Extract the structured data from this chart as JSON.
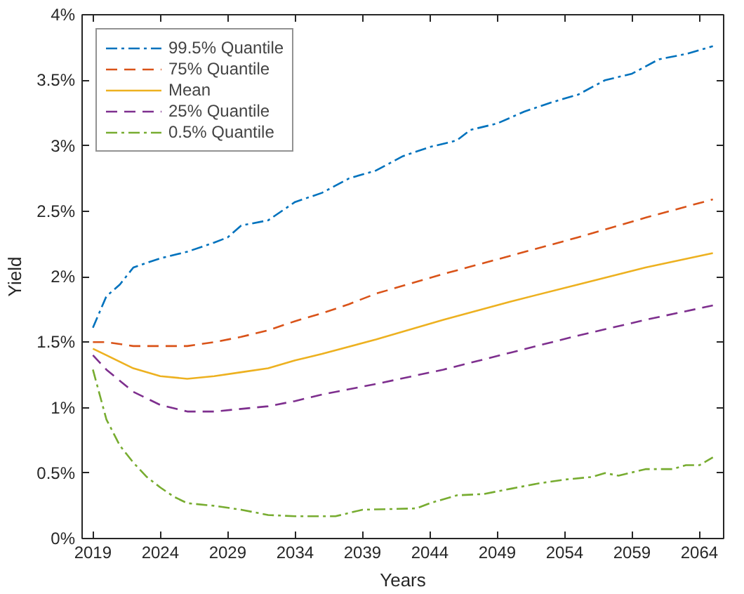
{
  "chart_data": {
    "type": "line",
    "xlabel": "Years",
    "ylabel": "Yield",
    "xlim": [
      2018.2,
      2065.8
    ],
    "xticks": [
      2019,
      2024,
      2029,
      2034,
      2039,
      2044,
      2049,
      2054,
      2059,
      2064
    ],
    "ylim": [
      0,
      4
    ],
    "yticks": [
      {
        "value": 0,
        "label": "0%"
      },
      {
        "value": 0.5,
        "label": "0.5%"
      },
      {
        "value": 1,
        "label": "1%"
      },
      {
        "value": 1.5,
        "label": "1.5%"
      },
      {
        "value": 2,
        "label": "2%"
      },
      {
        "value": 2.5,
        "label": "2.5%"
      },
      {
        "value": 3,
        "label": "3%"
      },
      {
        "value": 3.5,
        "label": "3.5%"
      },
      {
        "value": 4,
        "label": "4%"
      }
    ],
    "grid": false,
    "legend": "top left",
    "marker": "none",
    "series": [
      {
        "name": "99.5% Quantile",
        "color": "#0072bd",
        "line_style": "dashdot",
        "x": [
          2019,
          2020,
          2021,
          2022,
          2024,
          2026,
          2028,
          2029,
          2030,
          2032,
          2034,
          2036,
          2038,
          2040,
          2042,
          2044,
          2046,
          2047,
          2049,
          2051,
          2053,
          2055,
          2057,
          2059,
          2061,
          2063,
          2065
        ],
        "values": [
          1.61,
          1.85,
          1.94,
          2.07,
          2.14,
          2.19,
          2.26,
          2.3,
          2.39,
          2.43,
          2.57,
          2.64,
          2.75,
          2.81,
          2.92,
          2.99,
          3.04,
          3.12,
          3.17,
          3.26,
          3.33,
          3.39,
          3.5,
          3.55,
          3.66,
          3.7,
          3.76
        ]
      },
      {
        "name": "75% Quantile",
        "color": "#d95319",
        "line_style": "dashed",
        "x": [
          2019,
          2020,
          2022,
          2024,
          2026,
          2028,
          2030,
          2032,
          2034,
          2036,
          2038,
          2040,
          2045,
          2050,
          2055,
          2060,
          2065
        ],
        "values": [
          1.5,
          1.5,
          1.47,
          1.47,
          1.47,
          1.5,
          1.54,
          1.59,
          1.66,
          1.72,
          1.79,
          1.87,
          2.02,
          2.16,
          2.3,
          2.45,
          2.59
        ]
      },
      {
        "name": "Mean",
        "color": "#edb120",
        "line_style": "solid",
        "x": [
          2019,
          2020,
          2022,
          2024,
          2026,
          2028,
          2030,
          2032,
          2034,
          2036,
          2040,
          2045,
          2050,
          2055,
          2060,
          2065
        ],
        "values": [
          1.45,
          1.4,
          1.3,
          1.24,
          1.22,
          1.24,
          1.27,
          1.3,
          1.36,
          1.41,
          1.52,
          1.67,
          1.81,
          1.94,
          2.07,
          2.18
        ]
      },
      {
        "name": "25% Quantile",
        "color": "#7e2f8e",
        "line_style": "dashed",
        "x": [
          2019,
          2020,
          2022,
          2024,
          2026,
          2028,
          2030,
          2032,
          2034,
          2036,
          2040,
          2045,
          2050,
          2055,
          2060,
          2065
        ],
        "values": [
          1.4,
          1.29,
          1.12,
          1.02,
          0.97,
          0.97,
          0.99,
          1.01,
          1.05,
          1.1,
          1.18,
          1.29,
          1.42,
          1.55,
          1.67,
          1.78
        ]
      },
      {
        "name": "0.5% Quantile",
        "color": "#77ac30",
        "line_style": "dashdot",
        "x": [
          2019,
          2020,
          2021,
          2022,
          2023,
          2024,
          2025,
          2026,
          2028,
          2030,
          2032,
          2034,
          2037,
          2039,
          2043,
          2044,
          2046,
          2048,
          2050,
          2052,
          2054,
          2056,
          2057,
          2058,
          2060,
          2062,
          2063,
          2064,
          2065
        ],
        "values": [
          1.29,
          0.91,
          0.71,
          0.58,
          0.47,
          0.39,
          0.32,
          0.27,
          0.25,
          0.22,
          0.18,
          0.17,
          0.17,
          0.22,
          0.23,
          0.27,
          0.33,
          0.34,
          0.38,
          0.42,
          0.45,
          0.47,
          0.5,
          0.48,
          0.53,
          0.53,
          0.56,
          0.56,
          0.62
        ]
      }
    ]
  }
}
